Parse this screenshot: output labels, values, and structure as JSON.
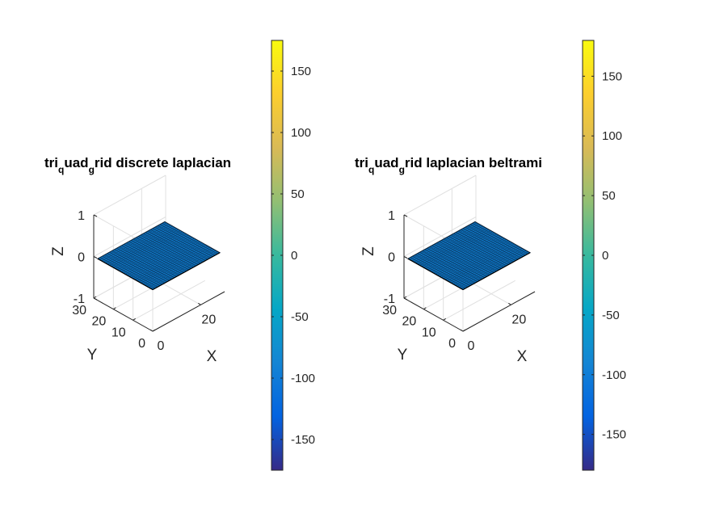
{
  "chart_data": [
    {
      "type": "surface",
      "title": {
        "a": "tri",
        "sub1": "q",
        "b": "uad",
        "sub2": "g",
        "c": "rid discrete laplacian"
      },
      "xlabel": "X",
      "ylabel": "Y",
      "zlabel": "Z",
      "xlim": [
        0,
        30
      ],
      "ylim": [
        0,
        30
      ],
      "zlim": [
        -1,
        1
      ],
      "xticks": [
        {
          "v": 0,
          "label": "0"
        },
        {
          "v": 20,
          "label": "20"
        }
      ],
      "yticks": [
        {
          "v": 0,
          "label": "0"
        },
        {
          "v": 10,
          "label": "10"
        },
        {
          "v": 20,
          "label": "20"
        },
        {
          "v": 30,
          "label": "30"
        }
      ],
      "zticks": [
        {
          "v": -1,
          "label": "-1"
        },
        {
          "v": 0,
          "label": "0"
        },
        {
          "v": 1,
          "label": "1"
        }
      ],
      "surface": {
        "x_range": [
          0,
          28
        ],
        "y_range": [
          0,
          28
        ],
        "grid_n": 28,
        "z": 0
      },
      "grid": true,
      "colorbar": {
        "limits": [
          -175,
          175
        ],
        "ticks": [
          {
            "v": -150,
            "label": "-150"
          },
          {
            "v": -100,
            "label": "-100"
          },
          {
            "v": -50,
            "label": "-50"
          },
          {
            "v": 0,
            "label": "0"
          },
          {
            "v": 50,
            "label": "50"
          },
          {
            "v": 100,
            "label": "100"
          },
          {
            "v": 150,
            "label": "150"
          }
        ]
      }
    },
    {
      "type": "surface",
      "title": {
        "a": "tri",
        "sub1": "q",
        "b": "uad",
        "sub2": "g",
        "c": "rid laplacian beltrami"
      },
      "xlabel": "X",
      "ylabel": "Y",
      "zlabel": "Z",
      "xlim": [
        0,
        30
      ],
      "ylim": [
        0,
        30
      ],
      "zlim": [
        -1,
        1
      ],
      "xticks": [
        {
          "v": 0,
          "label": "0"
        },
        {
          "v": 20,
          "label": "20"
        }
      ],
      "yticks": [
        {
          "v": 0,
          "label": "0"
        },
        {
          "v": 10,
          "label": "10"
        },
        {
          "v": 20,
          "label": "20"
        },
        {
          "v": 30,
          "label": "30"
        }
      ],
      "zticks": [
        {
          "v": -1,
          "label": "-1"
        },
        {
          "v": 0,
          "label": "0"
        },
        {
          "v": 1,
          "label": "1"
        }
      ],
      "surface": {
        "x_range": [
          0,
          28
        ],
        "y_range": [
          0,
          28
        ],
        "grid_n": 28,
        "z": 0
      },
      "grid": true,
      "colorbar": {
        "limits": [
          -180,
          180
        ],
        "ticks": [
          {
            "v": -150,
            "label": "-150"
          },
          {
            "v": -100,
            "label": "-100"
          },
          {
            "v": -50,
            "label": "-50"
          },
          {
            "v": 0,
            "label": "0"
          },
          {
            "v": 50,
            "label": "50"
          },
          {
            "v": 100,
            "label": "100"
          },
          {
            "v": 150,
            "label": "150"
          }
        ]
      }
    }
  ],
  "colors": {
    "surface_face": "#0e6fba",
    "surface_edge": "#0a1e33",
    "axis_line": "#262626",
    "grid_line": "#e0e0e0",
    "text": "#262626",
    "parula_stops": [
      "#352a87",
      "#0363e1",
      "#1485d4",
      "#06a7c6",
      "#38b99e",
      "#92bf73",
      "#d9ba56",
      "#fcce2e",
      "#f9fb0e"
    ]
  }
}
